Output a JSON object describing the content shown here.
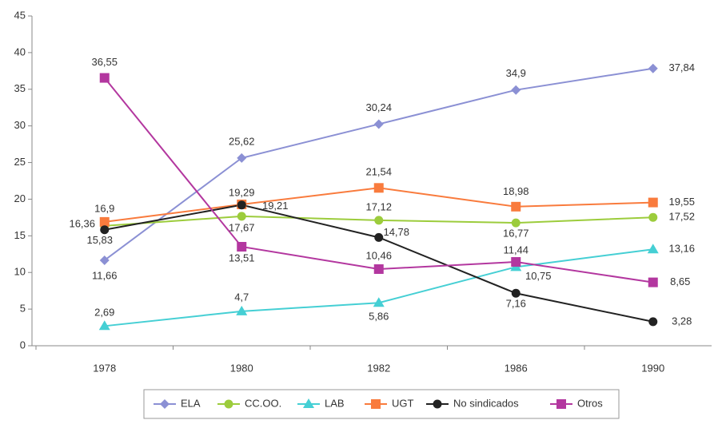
{
  "chart_data": {
    "type": "line",
    "categories": [
      "1978",
      "1980",
      "1982",
      "1986",
      "1990"
    ],
    "ylim": [
      0,
      45
    ],
    "yticks": [
      0,
      5,
      10,
      15,
      20,
      25,
      30,
      35,
      40,
      45
    ],
    "grid": false,
    "legend": "bottom",
    "series": [
      {
        "name": "ELA",
        "color": "#8b90d4",
        "marker": "diamond",
        "values": [
          11.66,
          25.62,
          30.24,
          34.9,
          37.84
        ],
        "value_labels": [
          "11,66",
          "25,62",
          "30,24",
          "34,9",
          "37,84"
        ]
      },
      {
        "name": "CC.OO.",
        "color": "#9ccc3c",
        "marker": "circle",
        "values": [
          16.36,
          17.67,
          17.12,
          16.77,
          17.52
        ],
        "value_labels": [
          "16,36",
          "17,67",
          "17,12",
          "16,77",
          "17,52"
        ]
      },
      {
        "name": "LAB",
        "color": "#45cfd4",
        "marker": "triangle",
        "values": [
          2.69,
          4.7,
          5.86,
          10.75,
          13.16
        ],
        "value_labels": [
          "2,69",
          "4,7",
          "5,86",
          "10,75",
          "13,16"
        ]
      },
      {
        "name": "UGT",
        "color": "#f97b3d",
        "marker": "square",
        "values": [
          16.9,
          19.29,
          21.54,
          18.98,
          19.55
        ],
        "value_labels": [
          "16,9",
          "19,29",
          "21,54",
          "18,98",
          "19,55"
        ]
      },
      {
        "name": "No sindicados",
        "color": "#222222",
        "marker": "circle",
        "values": [
          15.83,
          19.21,
          14.78,
          7.16,
          3.28
        ],
        "value_labels": [
          "15,83",
          "19,21",
          "14,78",
          "7,16",
          "3,28"
        ]
      },
      {
        "name": "Otros",
        "color": "#b3379f",
        "marker": "square",
        "values": [
          36.55,
          13.51,
          10.46,
          11.44,
          8.65
        ],
        "value_labels": [
          "36,55",
          "13,51",
          "10,46",
          "11,44",
          "8,65"
        ]
      }
    ]
  }
}
